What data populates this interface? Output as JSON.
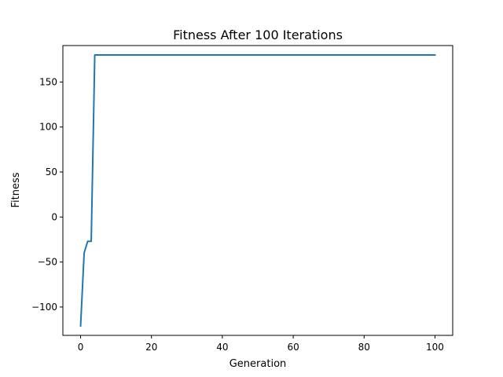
{
  "chart_data": {
    "type": "line",
    "title": "Fitness After 100 Iterations",
    "xlabel": "Generation",
    "ylabel": "Fitness",
    "xlim": [
      -5,
      105
    ],
    "ylim": [
      -131.5,
      190.5
    ],
    "xticks": [
      0,
      20,
      40,
      60,
      80,
      100
    ],
    "yticks": [
      -100,
      -50,
      0,
      50,
      100,
      150
    ],
    "xtick_labels": [
      "0",
      "20",
      "40",
      "60",
      "80",
      "100"
    ],
    "ytick_labels": [
      "−100",
      "−50",
      "0",
      "50",
      "100",
      "150"
    ],
    "grid": false,
    "series": [
      {
        "color": "#1f77b4",
        "x": [
          0,
          1,
          2,
          3,
          4,
          5,
          10,
          20,
          30,
          40,
          50,
          60,
          70,
          80,
          90,
          100
        ],
        "y": [
          -121,
          -40,
          -27,
          -27,
          180,
          180,
          180,
          180,
          180,
          180,
          180,
          180,
          180,
          180,
          180,
          180
        ]
      }
    ]
  }
}
